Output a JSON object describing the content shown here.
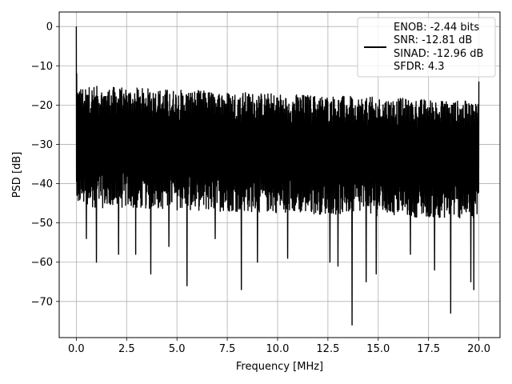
{
  "chart_data": {
    "type": "line",
    "title": "",
    "xlabel": "Frequency [MHz]",
    "ylabel": "PSD [dB]",
    "xlim": [
      -0.85,
      21.05
    ],
    "ylim": [
      -79.2,
      3.7
    ],
    "xticks": [
      0.0,
      2.5,
      5.0,
      7.5,
      10.0,
      12.5,
      15.0,
      17.5,
      20.0
    ],
    "xtick_labels": [
      "0.0",
      "2.5",
      "5.0",
      "7.5",
      "10.0",
      "12.5",
      "15.0",
      "17.5",
      "20.0"
    ],
    "yticks": [
      0,
      -10,
      -20,
      -30,
      -40,
      -50,
      -60,
      -70
    ],
    "ytick_labels": [
      "0",
      "−10",
      "−20",
      "−30",
      "−40",
      "−50",
      "−60",
      "−70"
    ],
    "grid": true,
    "line_color": "#000000",
    "legend": {
      "position": "upper-right",
      "entries": [
        "ENOB: -2.44 bits",
        "SNR: -12.81 dB",
        "SINAD: -12.96 dB",
        "SFDR: 4.3"
      ]
    },
    "series": [
      {
        "x_range": [
          0,
          20
        ],
        "noise_band_start": {
          "top": -21,
          "bottom": -43
        },
        "noise_band_end": {
          "top": -25,
          "bottom": -46
        },
        "peaks": [
          {
            "x": 0.0,
            "y": 0.0
          },
          {
            "x": 0.02,
            "y": -12
          },
          {
            "x": 0.06,
            "y": -17
          },
          {
            "x": 0.1,
            "y": -31
          },
          {
            "x": 0.3,
            "y": -38
          },
          {
            "x": 0.5,
            "y": -54
          },
          {
            "x": 0.6,
            "y": -19
          },
          {
            "x": 1.0,
            "y": -60
          },
          {
            "x": 1.45,
            "y": -18
          },
          {
            "x": 2.1,
            "y": -58
          },
          {
            "x": 2.95,
            "y": -58
          },
          {
            "x": 3.7,
            "y": -63
          },
          {
            "x": 4.6,
            "y": -56
          },
          {
            "x": 5.5,
            "y": -66
          },
          {
            "x": 6.9,
            "y": -54
          },
          {
            "x": 8.2,
            "y": -67
          },
          {
            "x": 9.0,
            "y": -60
          },
          {
            "x": 10.5,
            "y": -59
          },
          {
            "x": 12.6,
            "y": -60
          },
          {
            "x": 13.0,
            "y": -61
          },
          {
            "x": 13.7,
            "y": -76
          },
          {
            "x": 14.4,
            "y": -65
          },
          {
            "x": 14.9,
            "y": -63
          },
          {
            "x": 16.6,
            "y": -58
          },
          {
            "x": 17.8,
            "y": -62
          },
          {
            "x": 18.6,
            "y": -73
          },
          {
            "x": 19.6,
            "y": -65
          },
          {
            "x": 19.75,
            "y": -67
          },
          {
            "x": 20.0,
            "y": -14
          }
        ]
      }
    ]
  }
}
